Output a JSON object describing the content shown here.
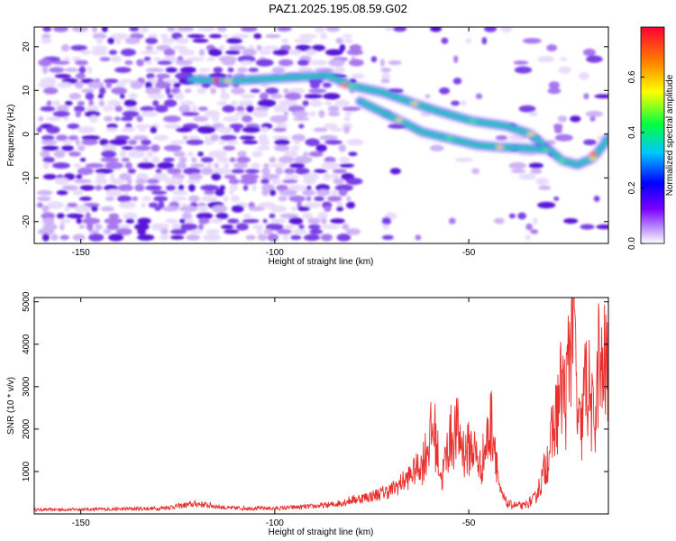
{
  "title": "PAZ1.2025.195.08.59.G02",
  "colors": {
    "snr_line": "#e8302e",
    "frame": "#000000",
    "speckle": [
      "#e9dcfb",
      "#cfb4f6",
      "#a777ee",
      "#7a3fe6",
      "#5a12d8"
    ],
    "colormap": [
      "#ffffff",
      "#7a00ff",
      "#0000ff",
      "#00e0ff",
      "#00ff40",
      "#ffff00",
      "#ff8800",
      "#ff0033"
    ]
  },
  "chart_data": [
    {
      "type": "heatmap",
      "title": "",
      "xlabel": "Height of straight line (km)",
      "ylabel": "Frequency (Hz)",
      "xlim": [
        -162,
        -14
      ],
      "ylim": [
        -25,
        24.5
      ],
      "xticks": [
        -150,
        -100,
        -50
      ],
      "yticks": [
        -20,
        -10,
        0,
        10,
        20
      ],
      "colorbar": {
        "label": "Normalized spectral amplitude",
        "range": [
          0,
          0.78
        ],
        "ticks": [
          "0.0",
          "0.2",
          "0.4",
          "0.6"
        ]
      },
      "signal_ridges": [
        {
          "name": "",
          "points": [
            [
              -122,
              12.5
            ],
            [
              -112,
              12.2
            ],
            [
              -86,
              13.4
            ],
            [
              -80,
              11
            ],
            [
              -72,
              9.5
            ],
            [
              -64,
              7
            ],
            [
              -57,
              5
            ],
            [
              -49,
              3
            ],
            [
              -40,
              1.8
            ],
            [
              -34,
              0
            ],
            [
              -30,
              -3
            ],
            [
              -26,
              -6
            ],
            [
              -22,
              -7
            ],
            [
              -18,
              -5.5
            ],
            [
              -14,
              -1
            ]
          ]
        },
        {
          "name": "",
          "points": [
            [
              -78,
              7.5
            ],
            [
              -68,
              3.2
            ],
            [
              -62,
              0.5
            ],
            [
              -55,
              -1
            ],
            [
              -48,
              -2.5
            ],
            [
              -42,
              -3
            ],
            [
              -36,
              -3.2
            ],
            [
              -30,
              -3.5
            ]
          ]
        }
      ]
    },
    {
      "type": "line",
      "title": "",
      "xlabel": "Height of straight line (km)",
      "ylabel": "SNR (10 * v/v)",
      "xlim": [
        -162,
        -14
      ],
      "ylim": [
        0,
        5100
      ],
      "xticks": [
        -150,
        -100,
        -50
      ],
      "yticks": [
        1000,
        2000,
        3000,
        4000,
        5000
      ],
      "profile": [
        [
          -162,
          100
        ],
        [
          -145,
          110
        ],
        [
          -130,
          130
        ],
        [
          -120,
          240
        ],
        [
          -112,
          140
        ],
        [
          -100,
          130
        ],
        [
          -90,
          180
        ],
        [
          -85,
          220
        ],
        [
          -80,
          330
        ],
        [
          -75,
          420
        ],
        [
          -70,
          560
        ],
        [
          -66,
          820
        ],
        [
          -62,
          1200
        ],
        [
          -59,
          2050
        ],
        [
          -57,
          800
        ],
        [
          -55,
          1750
        ],
        [
          -53,
          1950
        ],
        [
          -51,
          1450
        ],
        [
          -49,
          1600
        ],
        [
          -47,
          1100
        ],
        [
          -45,
          1800
        ],
        [
          -44,
          2200
        ],
        [
          -43,
          1500
        ],
        [
          -42,
          500
        ],
        [
          -40,
          230
        ],
        [
          -36,
          180
        ],
        [
          -33,
          350
        ],
        [
          -31,
          850
        ],
        [
          -29,
          1600
        ],
        [
          -27,
          2500
        ],
        [
          -26,
          3050
        ],
        [
          -25,
          2600
        ],
        [
          -24,
          4000
        ],
        [
          -23,
          5100
        ],
        [
          -22,
          2200
        ],
        [
          -21,
          1900
        ],
        [
          -20,
          3100
        ],
        [
          -19,
          2900
        ],
        [
          -18,
          2200
        ],
        [
          -17,
          2600
        ],
        [
          -16.5,
          3900
        ],
        [
          -16,
          3000
        ],
        [
          -15,
          3500
        ],
        [
          -14,
          3300
        ]
      ]
    }
  ]
}
